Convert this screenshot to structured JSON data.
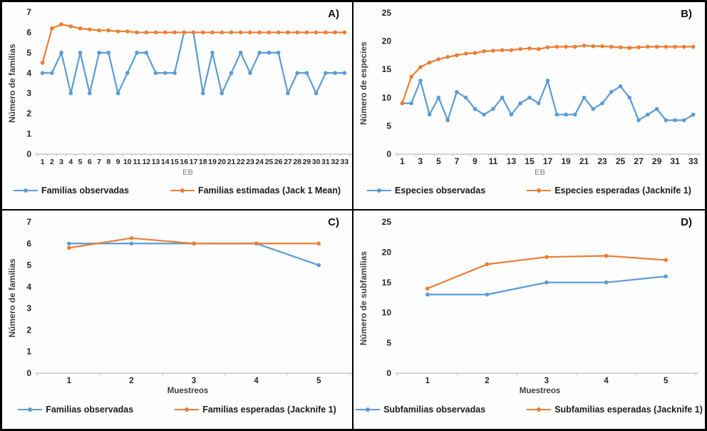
{
  "colors": {
    "observed_blue": "#5B9BD5",
    "expected_orange": "#ED7D31",
    "axis_line": "#BFBFBF",
    "tick_text": "#262626"
  },
  "chart_data": [
    {
      "id": "a",
      "panel_label": "A)",
      "type": "line",
      "ylabel": "Número de familias",
      "xlabel": "EB",
      "ylim": [
        0,
        7
      ],
      "yticks": [
        0,
        1,
        2,
        3,
        4,
        5,
        6,
        7
      ],
      "x": [
        1,
        2,
        3,
        4,
        5,
        6,
        7,
        8,
        9,
        10,
        11,
        12,
        13,
        14,
        15,
        16,
        17,
        18,
        19,
        20,
        21,
        22,
        23,
        24,
        25,
        26,
        27,
        28,
        29,
        30,
        31,
        32,
        33
      ],
      "xtick_labels": [
        "1",
        "2",
        "3",
        "4",
        "5",
        "6",
        "7",
        "8",
        "9",
        "10",
        "11",
        "12",
        "13",
        "14",
        "15",
        "16",
        "17",
        "18",
        "19",
        "20",
        "21",
        "22",
        "23",
        "24",
        "25",
        "26",
        "27",
        "28",
        "29",
        "30",
        "31",
        "32",
        "33"
      ],
      "legend_position": "bottom",
      "grid": false,
      "series": [
        {
          "name": "Familias observadas",
          "color": "#5B9BD5",
          "values": [
            4,
            4,
            5,
            3,
            5,
            3,
            5,
            5,
            3,
            4,
            5,
            5,
            4,
            4,
            4,
            6,
            6,
            3,
            5,
            3,
            4,
            5,
            4,
            5,
            5,
            5,
            3,
            4,
            4,
            3,
            4,
            4,
            4
          ]
        },
        {
          "name": "Familias estimadas (Jack 1 Mean)",
          "color": "#ED7D31",
          "values": [
            4.5,
            6.2,
            6.4,
            6.3,
            6.2,
            6.15,
            6.1,
            6.1,
            6.05,
            6.05,
            6,
            6,
            6,
            6,
            6,
            6,
            6,
            6,
            6,
            6,
            6,
            6,
            6,
            6,
            6,
            6,
            6,
            6,
            6,
            6,
            6,
            6,
            6
          ]
        }
      ]
    },
    {
      "id": "b",
      "panel_label": "B)",
      "type": "line",
      "ylabel": "Número de especies",
      "xlabel": "EB",
      "ylim": [
        0,
        25
      ],
      "yticks": [
        0,
        5,
        10,
        15,
        20,
        25
      ],
      "x": [
        1,
        2,
        3,
        4,
        5,
        6,
        7,
        8,
        9,
        10,
        11,
        12,
        13,
        14,
        15,
        16,
        17,
        18,
        19,
        20,
        21,
        22,
        23,
        24,
        25,
        26,
        27,
        28,
        29,
        30,
        31,
        32,
        33
      ],
      "xtick_labels": [
        "1",
        "",
        "3",
        "",
        "5",
        "",
        "7",
        "",
        "9",
        "",
        "11",
        "",
        "13",
        "",
        "15",
        "",
        "17",
        "",
        "19",
        "",
        "21",
        "",
        "23",
        "",
        "25",
        "",
        "27",
        "",
        "29",
        "",
        "31",
        "",
        "33"
      ],
      "legend_position": "bottom",
      "grid": false,
      "series": [
        {
          "name": "Especies observadas",
          "color": "#5B9BD5",
          "values": [
            9,
            9,
            13,
            7,
            10,
            6,
            11,
            10,
            8,
            7,
            8,
            10,
            7,
            9,
            10,
            9,
            13,
            7,
            7,
            7,
            10,
            8,
            9,
            11,
            12,
            10,
            6,
            7,
            8,
            6,
            6,
            6,
            7
          ]
        },
        {
          "name": "Especies esperadas (Jacknife 1)",
          "color": "#ED7D31",
          "values": [
            9,
            13.7,
            15.4,
            16.2,
            16.8,
            17.2,
            17.5,
            17.8,
            17.9,
            18.2,
            18.3,
            18.4,
            18.4,
            18.6,
            18.7,
            18.6,
            18.9,
            19,
            19,
            19,
            19.2,
            19.1,
            19.1,
            19,
            18.9,
            18.8,
            18.9,
            19,
            19,
            19,
            19,
            19,
            19
          ]
        }
      ]
    },
    {
      "id": "c",
      "panel_label": "C)",
      "type": "line",
      "ylabel": "Número de familias",
      "xlabel": "Muestreos",
      "ylim": [
        0,
        7
      ],
      "yticks": [
        0,
        1,
        2,
        3,
        4,
        5,
        6,
        7
      ],
      "x": [
        1,
        2,
        3,
        4,
        5
      ],
      "xtick_labels": [
        "1",
        "2",
        "3",
        "4",
        "5"
      ],
      "legend_position": "bottom",
      "grid": false,
      "series": [
        {
          "name": "Familias observadas",
          "color": "#5B9BD5",
          "values": [
            6,
            6,
            6,
            6,
            5
          ]
        },
        {
          "name": "Familias esperadas (Jacknife 1)",
          "color": "#ED7D31",
          "values": [
            5.8,
            6.25,
            6,
            6,
            6
          ]
        }
      ]
    },
    {
      "id": "d",
      "panel_label": "D)",
      "type": "line",
      "ylabel": "Número de subfamilias",
      "xlabel": "Muestreos",
      "ylim": [
        0,
        25
      ],
      "yticks": [
        0,
        5,
        10,
        15,
        20,
        25
      ],
      "x": [
        1,
        2,
        3,
        4,
        5
      ],
      "xtick_labels": [
        "1",
        "2",
        "3",
        "4",
        "5"
      ],
      "legend_position": "bottom",
      "grid": false,
      "series": [
        {
          "name": "Subfamilias observadas",
          "color": "#5B9BD5",
          "values": [
            13,
            13,
            15,
            15,
            16
          ]
        },
        {
          "name": "Subfamilias esperadas (Jacknife 1)",
          "color": "#ED7D31",
          "values": [
            14,
            18,
            19.2,
            19.4,
            18.7
          ]
        }
      ]
    }
  ]
}
